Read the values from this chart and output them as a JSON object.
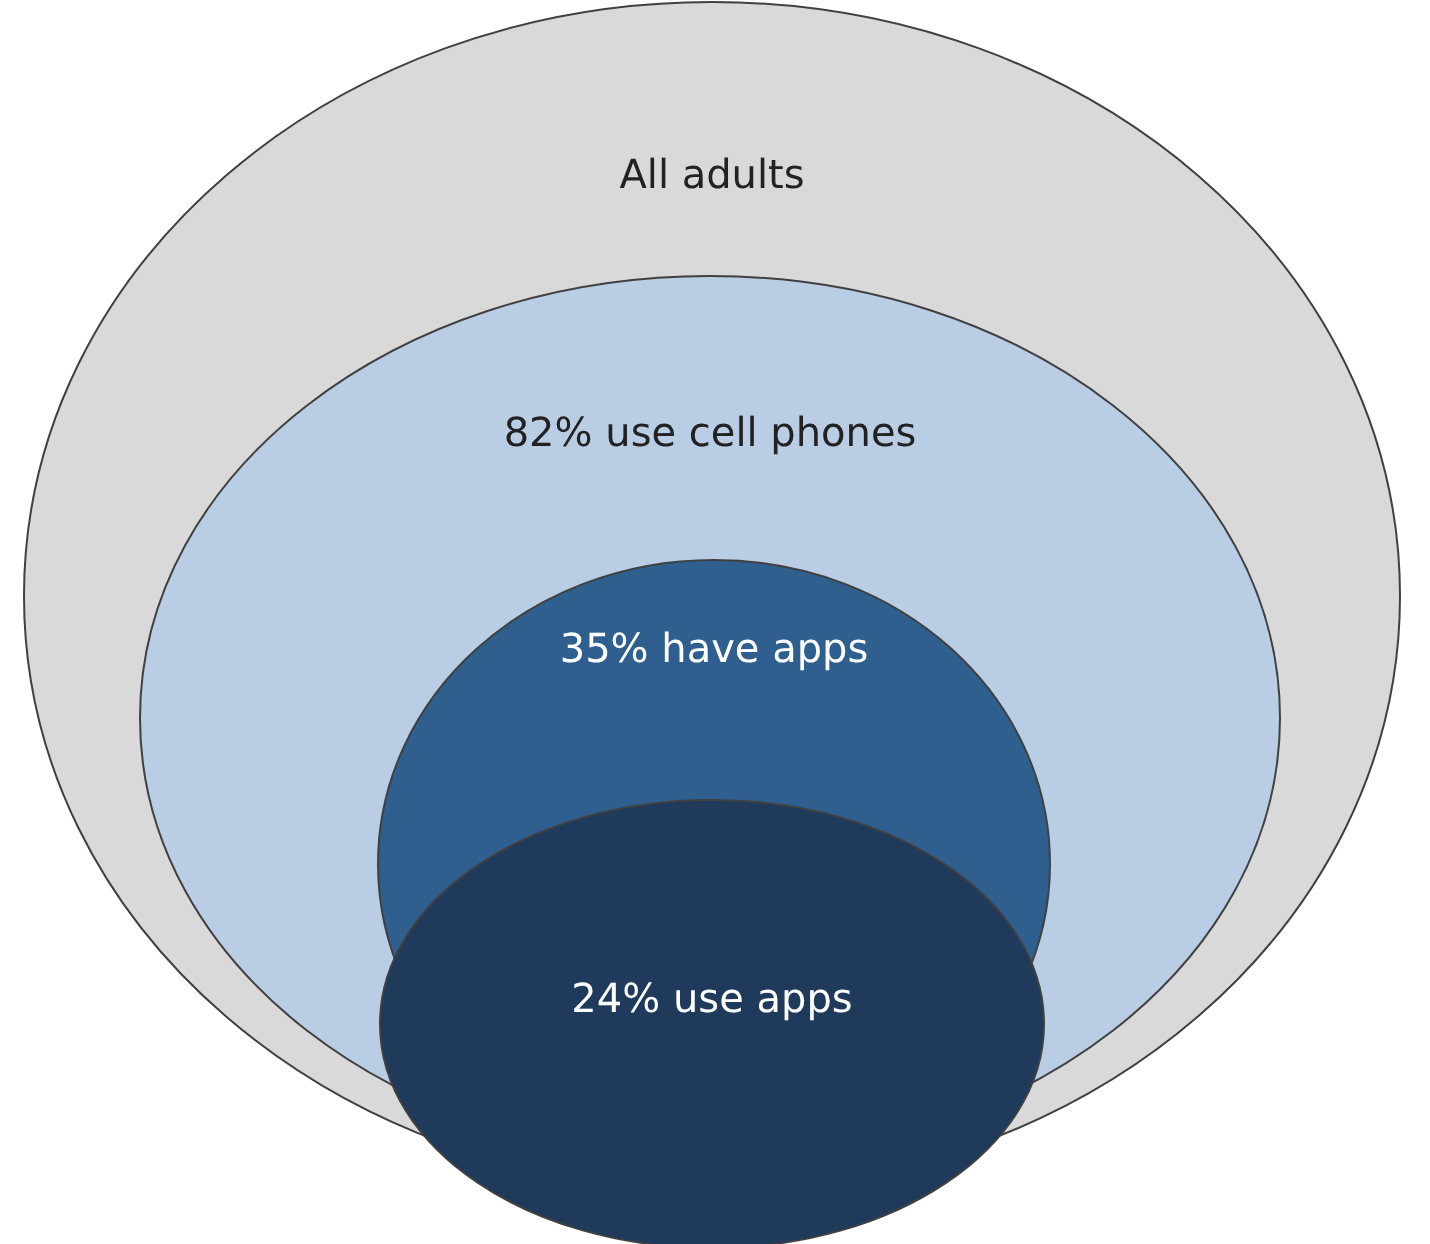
{
  "chart_data": {
    "type": "other",
    "categories": [
      "All adults",
      "use cell phones",
      "have apps",
      "use apps"
    ],
    "values": [
      null,
      82,
      35,
      24
    ],
    "value_labels": [
      null,
      "82%",
      "35%",
      "24%"
    ],
    "colors": [
      "#d9d9d9",
      "#b9cde5",
      "#2e5f8e",
      "#1f3a5a"
    ]
  }
}
